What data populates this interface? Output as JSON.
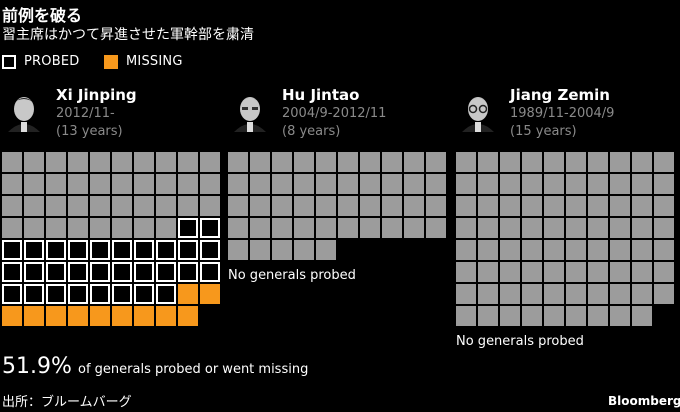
{
  "chart_data": {
    "type": "waffle",
    "title": "前例を破る",
    "subtitle": "習主席はかつて昇進させた軍幹部を粛清",
    "legend": [
      {
        "label": "PROBED",
        "color": "#000000"
      },
      {
        "label": "MISSING",
        "color": "#f7981c"
      }
    ],
    "colors": {
      "general": "#9c9c9c",
      "probed_border": "#ffffff",
      "missing": "#f7981c"
    },
    "leaders": [
      {
        "name": "Xi Jinping",
        "term": "2012/11-",
        "years": "(13 years)",
        "total": 79,
        "probed": 30,
        "missing": 11,
        "note": "",
        "avatar": "xi-jinping-portrait"
      },
      {
        "name": "Hu Jintao",
        "term": "2004/9-2012/11",
        "years": "(8 years)",
        "total": 45,
        "probed": 0,
        "missing": 0,
        "note": "No generals probed",
        "avatar": "hu-jintao-portrait"
      },
      {
        "name": "Jiang Zemin",
        "term": "1989/11-2004/9",
        "years": "(15 years)",
        "total": 79,
        "probed": 0,
        "missing": 0,
        "note": "No generals probed",
        "avatar": "jiang-zemin-portrait"
      }
    ],
    "stat": {
      "value": "51.9%",
      "label": "of generals probed or went missing"
    },
    "source": "出所：ブルームバーグ",
    "brand": "Bloomberg"
  }
}
